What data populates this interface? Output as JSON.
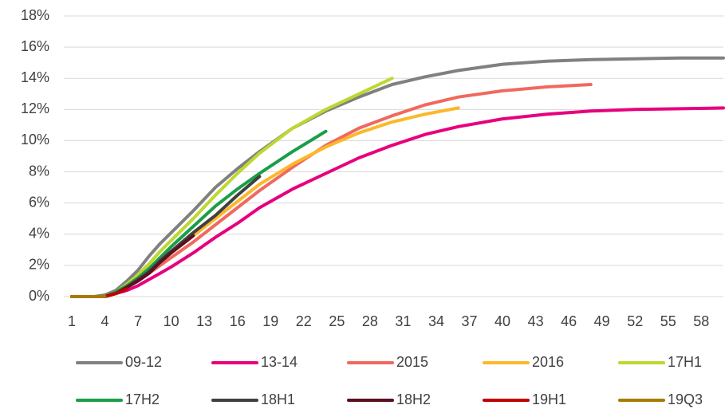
{
  "chart_data": {
    "type": "line",
    "x": [
      1,
      3,
      4,
      5,
      6,
      7,
      8,
      9,
      10,
      12,
      14,
      16,
      18,
      21,
      24,
      27,
      30,
      33,
      36,
      40,
      44,
      48,
      52,
      56,
      60
    ],
    "xlim": [
      1,
      60
    ],
    "xticks": [
      1,
      4,
      7,
      10,
      13,
      16,
      19,
      22,
      25,
      28,
      31,
      34,
      37,
      40,
      43,
      46,
      49,
      52,
      55,
      58
    ],
    "ylim": [
      0,
      18
    ],
    "yticks": [
      {
        "value": 0,
        "label": "0%"
      },
      {
        "value": 2,
        "label": "2%"
      },
      {
        "value": 4,
        "label": "4%"
      },
      {
        "value": 6,
        "label": "6%"
      },
      {
        "value": 8,
        "label": "8%"
      },
      {
        "value": 10,
        "label": "10%"
      },
      {
        "value": 12,
        "label": "12%"
      },
      {
        "value": 14,
        "label": "14%"
      },
      {
        "value": 16,
        "label": "16%"
      },
      {
        "value": 18,
        "label": "18%"
      }
    ],
    "grid": true,
    "legend": "bottom",
    "series": [
      {
        "name": "09-12",
        "color": "#808080",
        "values": [
          0,
          0,
          0.1,
          0.4,
          1.0,
          1.7,
          2.6,
          3.4,
          4.1,
          5.5,
          7.0,
          8.2,
          9.3,
          10.8,
          11.9,
          12.8,
          13.6,
          14.1,
          14.5,
          14.9,
          15.1,
          15.2,
          15.25,
          15.3,
          15.3
        ]
      },
      {
        "name": "13-14",
        "color": "#e6007e",
        "values": [
          0,
          0,
          0,
          0.2,
          0.4,
          0.7,
          1.1,
          1.5,
          1.9,
          2.8,
          3.8,
          4.7,
          5.7,
          6.9,
          7.9,
          8.9,
          9.7,
          10.4,
          10.9,
          11.4,
          11.7,
          11.9,
          12.0,
          12.05,
          12.1
        ]
      },
      {
        "name": "2015",
        "color": "#f0695f",
        "values": [
          0,
          0,
          0,
          0.3,
          0.6,
          1.0,
          1.5,
          2.0,
          2.5,
          3.5,
          4.6,
          5.7,
          6.8,
          8.3,
          9.7,
          10.8,
          11.6,
          12.3,
          12.8,
          13.2,
          13.45,
          13.6,
          null,
          null,
          null
        ]
      },
      {
        "name": "2016",
        "color": "#fbb829",
        "values": [
          0,
          0,
          0,
          0.3,
          0.7,
          1.1,
          1.6,
          2.2,
          2.8,
          3.9,
          5.0,
          6.1,
          7.2,
          8.5,
          9.6,
          10.5,
          11.2,
          11.7,
          12.1,
          null,
          null,
          null,
          null,
          null,
          null
        ]
      },
      {
        "name": "17H1",
        "color": "#bfd730",
        "values": [
          0,
          0,
          0,
          0.3,
          0.8,
          1.4,
          2.1,
          2.9,
          3.6,
          5.0,
          6.5,
          7.9,
          9.2,
          10.8,
          12.0,
          13.0,
          14.0,
          null,
          null,
          null,
          null,
          null,
          null,
          null,
          null
        ]
      },
      {
        "name": "17H2",
        "color": "#1a9e48",
        "values": [
          0,
          0,
          0,
          0.3,
          0.7,
          1.2,
          1.8,
          2.5,
          3.2,
          4.5,
          5.8,
          6.9,
          7.9,
          9.3,
          10.6,
          null,
          null,
          null,
          null,
          null,
          null,
          null,
          null,
          null,
          null
        ]
      },
      {
        "name": "18H1",
        "color": "#404040",
        "values": [
          0,
          0,
          0,
          0.2,
          0.6,
          1.1,
          1.6,
          2.3,
          2.9,
          4.1,
          5.2,
          6.5,
          7.7,
          null,
          null,
          null,
          null,
          null,
          null,
          null,
          null,
          null,
          null,
          null,
          null
        ]
      },
      {
        "name": "18H2",
        "color": "#5c0f1e",
        "values": [
          0,
          0,
          0,
          0.2,
          0.6,
          1.0,
          1.5,
          2.2,
          2.8,
          3.9,
          null,
          null,
          null,
          null,
          null,
          null,
          null,
          null,
          null,
          null,
          null,
          null,
          null,
          null,
          null
        ]
      },
      {
        "name": "19H1",
        "color": "#c00000",
        "values": [
          0,
          0,
          0,
          0.2,
          0.5,
          null,
          null,
          null,
          null,
          null,
          null,
          null,
          null,
          null,
          null,
          null,
          null,
          null,
          null,
          null,
          null,
          null,
          null,
          null,
          null
        ]
      },
      {
        "name": "19Q3",
        "color": "#a67c00",
        "values": [
          0,
          0,
          0,
          null,
          null,
          null,
          null,
          null,
          null,
          null,
          null,
          null,
          null,
          null,
          null,
          null,
          null,
          null,
          null,
          null,
          null,
          null,
          null,
          null,
          null
        ]
      }
    ]
  }
}
